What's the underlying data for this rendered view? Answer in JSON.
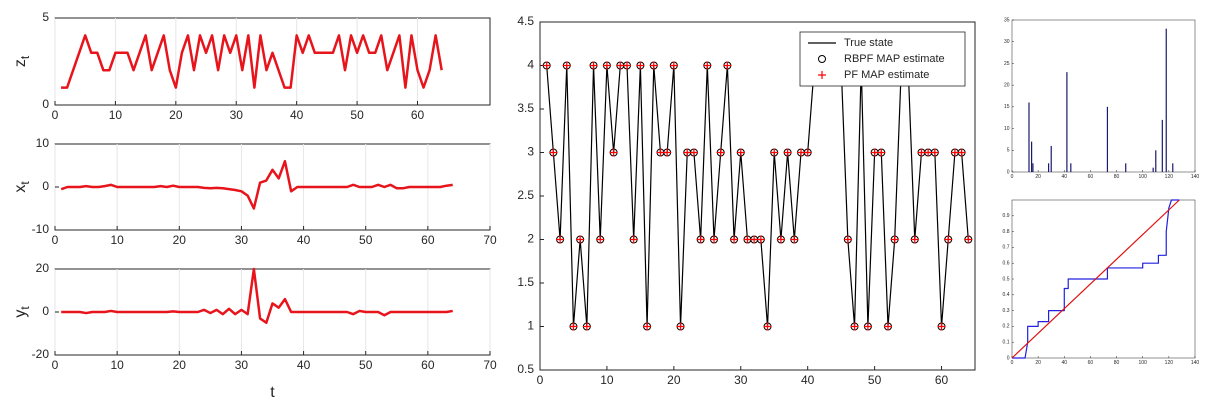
{
  "chart_data": [
    {
      "type": "line",
      "ylabel": "z",
      "ylabel_subscript": "t",
      "xlim": [
        0,
        72
      ],
      "xticks": [
        0,
        10,
        20,
        30,
        40,
        50,
        60
      ],
      "ylim": [
        0,
        5
      ],
      "yticks": [
        0,
        5
      ],
      "xgrid": true,
      "x": [
        1,
        2,
        3,
        4,
        5,
        6,
        7,
        8,
        9,
        10,
        11,
        12,
        13,
        14,
        15,
        16,
        17,
        18,
        19,
        20,
        21,
        22,
        23,
        24,
        25,
        26,
        27,
        28,
        29,
        30,
        31,
        32,
        33,
        34,
        35,
        36,
        37,
        38,
        39,
        40,
        41,
        42,
        43,
        44,
        45,
        46,
        47,
        48,
        49,
        50,
        51,
        52,
        53,
        54,
        55,
        56,
        57,
        58,
        59,
        60,
        61,
        62,
        63,
        64
      ],
      "series": [
        {
          "color": "#e8141c",
          "values": [
            1,
            1,
            2,
            3,
            4,
            3,
            3,
            2,
            2,
            3,
            3,
            3,
            2,
            3,
            4,
            2,
            3,
            4,
            2,
            1,
            3,
            4,
            2,
            4,
            3,
            4,
            2,
            4,
            3,
            4,
            2,
            4,
            1,
            4,
            2,
            3,
            2,
            1,
            1,
            4,
            3,
            4,
            3,
            3,
            3,
            3,
            4,
            2,
            4,
            3,
            4,
            3,
            3,
            4,
            2,
            3,
            4,
            1,
            4,
            2,
            1,
            2,
            4,
            2
          ]
        }
      ]
    },
    {
      "type": "line",
      "ylabel": "x",
      "ylabel_subscript": "t",
      "xlim": [
        0,
        70
      ],
      "xticks": [
        0,
        10,
        20,
        30,
        40,
        50,
        60,
        70
      ],
      "ylim": [
        -10,
        10
      ],
      "yticks": [
        -10,
        0,
        10
      ],
      "xgrid": true,
      "x": [
        1,
        2,
        3,
        4,
        5,
        6,
        7,
        8,
        9,
        10,
        11,
        12,
        13,
        14,
        15,
        16,
        17,
        18,
        19,
        20,
        21,
        22,
        23,
        24,
        25,
        26,
        27,
        28,
        29,
        30,
        31,
        32,
        33,
        34,
        35,
        36,
        37,
        38,
        39,
        40,
        41,
        42,
        43,
        44,
        45,
        46,
        47,
        48,
        49,
        50,
        51,
        52,
        53,
        54,
        55,
        56,
        57,
        58,
        59,
        60,
        61,
        62,
        63,
        64
      ],
      "series": [
        {
          "color": "#e8141c",
          "values": [
            -0.5,
            0,
            0,
            0,
            0.2,
            0,
            0,
            0.2,
            0.5,
            0,
            0,
            0,
            0,
            0,
            0,
            0,
            0.2,
            0,
            0.3,
            0,
            0,
            0,
            0,
            -0.2,
            -0.3,
            -0.2,
            -0.3,
            -0.5,
            -0.7,
            -1,
            -2,
            -5,
            1,
            1.5,
            4,
            2,
            6,
            -1,
            0,
            0,
            0,
            0,
            0,
            0,
            0,
            0,
            0,
            0.5,
            0,
            0,
            0,
            0.5,
            0,
            0.5,
            -0.3,
            -0.3,
            0,
            0,
            0,
            0,
            0,
            0,
            0.3,
            0.5
          ]
        }
      ]
    },
    {
      "type": "line",
      "ylabel": "y",
      "ylabel_subscript": "t",
      "xlabel": "t",
      "xlim": [
        0,
        70
      ],
      "xticks": [
        0,
        10,
        20,
        30,
        40,
        50,
        60,
        70
      ],
      "ylim": [
        -20,
        20
      ],
      "yticks": [
        -20,
        0,
        20
      ],
      "xgrid": true,
      "x": [
        1,
        2,
        3,
        4,
        5,
        6,
        7,
        8,
        9,
        10,
        11,
        12,
        13,
        14,
        15,
        16,
        17,
        18,
        19,
        20,
        21,
        22,
        23,
        24,
        25,
        26,
        27,
        28,
        29,
        30,
        31,
        32,
        33,
        34,
        35,
        36,
        37,
        38,
        39,
        40,
        41,
        42,
        43,
        44,
        45,
        46,
        47,
        48,
        49,
        50,
        51,
        52,
        53,
        54,
        55,
        56,
        57,
        58,
        59,
        60,
        61,
        62,
        63,
        64
      ],
      "series": [
        {
          "color": "#e8141c",
          "values": [
            0,
            0,
            0,
            0,
            -0.5,
            0,
            0,
            0,
            0.5,
            0,
            0,
            0,
            0,
            0,
            0,
            0,
            0,
            0,
            0.3,
            0,
            0,
            0,
            0,
            1,
            -0.5,
            1,
            -1,
            1.5,
            -1,
            1,
            -1,
            20,
            -3,
            -5,
            4,
            2,
            6,
            0,
            0,
            0,
            0,
            0,
            0,
            0,
            0,
            0,
            0,
            -1,
            0.5,
            0,
            0,
            0,
            -1.5,
            0,
            0,
            0,
            0,
            0,
            0,
            0,
            0,
            0,
            0,
            0.5
          ]
        }
      ]
    },
    {
      "type": "line",
      "xlim": [
        0,
        65
      ],
      "xticks": [
        0,
        10,
        20,
        30,
        40,
        50,
        60
      ],
      "ylim": [
        0.5,
        4.5
      ],
      "yticks": [
        0.5,
        1,
        1.5,
        2,
        2.5,
        3,
        3.5,
        4,
        4.5
      ],
      "legend": "top-right",
      "x": [
        1,
        2,
        3,
        4,
        5,
        6,
        7,
        8,
        9,
        10,
        11,
        12,
        13,
        14,
        15,
        16,
        17,
        18,
        19,
        20,
        21,
        22,
        23,
        24,
        25,
        26,
        27,
        28,
        29,
        30,
        31,
        32,
        33,
        34,
        35,
        36,
        37,
        38,
        39,
        40,
        41,
        42,
        43,
        44,
        45,
        46,
        47,
        48,
        49,
        50,
        51,
        52,
        53,
        54,
        55,
        56,
        57,
        58,
        59,
        60,
        61,
        62,
        63,
        64
      ],
      "series": [
        {
          "name": "True state",
          "color": "#000000",
          "values": [
            4,
            3,
            2,
            4,
            1,
            2,
            1,
            4,
            2,
            4,
            3,
            4,
            4,
            2,
            4,
            1,
            4,
            3,
            3,
            4,
            1,
            3,
            3,
            2,
            4,
            2,
            3,
            4,
            2,
            3,
            2,
            2,
            2,
            1,
            3,
            2,
            3,
            2,
            3,
            3,
            4,
            4,
            4,
            4,
            4,
            2,
            1,
            4,
            1,
            3,
            3,
            1,
            2,
            4,
            4,
            2,
            3,
            3,
            3,
            1,
            2,
            3,
            3,
            2
          ]
        },
        {
          "name": "RBPF MAP estimate",
          "color": "#000000",
          "marker": "circle",
          "values": [
            4,
            3,
            2,
            4,
            1,
            2,
            1,
            4,
            2,
            4,
            3,
            4,
            4,
            2,
            4,
            1,
            4,
            3,
            3,
            4,
            1,
            3,
            3,
            2,
            4,
            2,
            3,
            4,
            2,
            3,
            2,
            2,
            2,
            1,
            3,
            2,
            3,
            2,
            3,
            3,
            4,
            4,
            4,
            4,
            4,
            2,
            1,
            4,
            1,
            3,
            3,
            1,
            2,
            4,
            4,
            2,
            3,
            3,
            3,
            1,
            2,
            3,
            3,
            2
          ]
        },
        {
          "name": "PF MAP estimate",
          "color": "#ff0000",
          "marker": "plus",
          "values": [
            4,
            3,
            2,
            4,
            1,
            2,
            1,
            4,
            2,
            4,
            3,
            4,
            4,
            2,
            4,
            1,
            4,
            3,
            3,
            4,
            1,
            3,
            3,
            2,
            4,
            2,
            3,
            4,
            2,
            3,
            2,
            2,
            2,
            1,
            3,
            2,
            3,
            2,
            3,
            3,
            4,
            4,
            4,
            4,
            4,
            2,
            1,
            4,
            1,
            3,
            3,
            1,
            2,
            4,
            4,
            2,
            3,
            3,
            3,
            1,
            2,
            3,
            3,
            2
          ]
        }
      ]
    },
    {
      "type": "bar",
      "xlim": [
        0,
        140
      ],
      "xticks": [
        0,
        20,
        40,
        60,
        80,
        100,
        120,
        140
      ],
      "ylim": [
        0,
        35
      ],
      "yticks": [
        0,
        5,
        10,
        15,
        20,
        25,
        30,
        35
      ],
      "color": "#1a1a6e",
      "x": [
        13,
        15,
        16,
        28,
        30,
        42,
        45,
        73,
        87,
        108,
        110,
        115,
        118,
        123
      ],
      "values": [
        16,
        7,
        2,
        2,
        6,
        23,
        2,
        15,
        2,
        1,
        5,
        12,
        33,
        2
      ]
    },
    {
      "type": "line",
      "xlim": [
        0,
        140
      ],
      "xticks": [
        0,
        20,
        40,
        60,
        80,
        100,
        120,
        140
      ],
      "ylim": [
        0,
        1
      ],
      "yticks": [
        0,
        0.1,
        0.2,
        0.3,
        0.4,
        0.5,
        0.6,
        0.7,
        0.8,
        0.9
      ],
      "series": [
        {
          "color": "#2020e0",
          "x": [
            0,
            10,
            12,
            12,
            20,
            20,
            28,
            28,
            40,
            40,
            43,
            43,
            73,
            73,
            100,
            100,
            112,
            112,
            118,
            118,
            120,
            122,
            128
          ],
          "values": [
            0,
            0,
            0.1,
            0.2,
            0.2,
            0.23,
            0.23,
            0.3,
            0.3,
            0.44,
            0.44,
            0.5,
            0.5,
            0.57,
            0.57,
            0.6,
            0.6,
            0.65,
            0.65,
            0.8,
            0.95,
            1,
            1
          ]
        },
        {
          "color": "#e01010",
          "x": [
            0,
            128
          ],
          "values": [
            0,
            1
          ]
        }
      ]
    }
  ]
}
